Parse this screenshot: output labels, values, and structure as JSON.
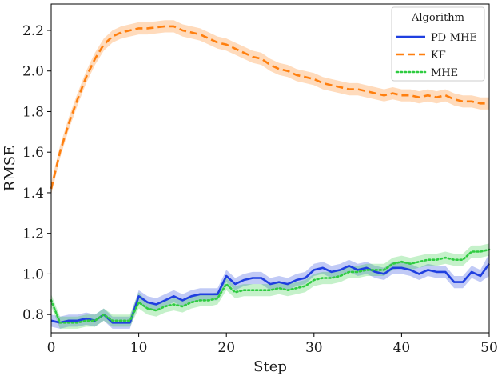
{
  "chart_data": {
    "type": "line",
    "title": "",
    "xlabel": "Step",
    "ylabel": "RMSE",
    "xlim": [
      0,
      50
    ],
    "ylim": [
      0.71,
      2.33
    ],
    "xticks": [
      0,
      10,
      20,
      30,
      40,
      50
    ],
    "xtick_labels": [
      "0",
      "10",
      "20",
      "30",
      "40",
      "50"
    ],
    "yticks": [
      0.8,
      1.0,
      1.2,
      1.4,
      1.6,
      1.8,
      2.0,
      2.2
    ],
    "ytick_labels": [
      "0.8",
      "1.0",
      "1.2",
      "1.4",
      "1.6",
      "1.8",
      "2.0",
      "2.2"
    ],
    "grid": false,
    "legend": {
      "title": "Algorithm",
      "position": "top-right"
    },
    "x": [
      0,
      1,
      2,
      3,
      4,
      5,
      6,
      7,
      8,
      9,
      10,
      11,
      12,
      13,
      14,
      15,
      16,
      17,
      18,
      19,
      20,
      21,
      22,
      23,
      24,
      25,
      26,
      27,
      28,
      29,
      30,
      31,
      32,
      33,
      34,
      35,
      36,
      37,
      38,
      39,
      40,
      41,
      42,
      43,
      44,
      45,
      46,
      47,
      48,
      49,
      50
    ],
    "series": [
      {
        "name": "PD-MHE",
        "color": "#1f3fe0",
        "style": "solid",
        "values": [
          0.77,
          0.76,
          0.77,
          0.77,
          0.78,
          0.77,
          0.8,
          0.76,
          0.76,
          0.76,
          0.89,
          0.86,
          0.85,
          0.87,
          0.89,
          0.87,
          0.89,
          0.9,
          0.9,
          0.9,
          0.99,
          0.95,
          0.97,
          0.98,
          0.98,
          0.95,
          0.96,
          0.95,
          0.97,
          0.98,
          1.02,
          1.03,
          1.01,
          1.02,
          1.04,
          1.02,
          1.03,
          1.01,
          1.0,
          1.03,
          1.03,
          1.02,
          1.0,
          1.02,
          1.01,
          1.01,
          0.96,
          0.96,
          1.01,
          0.99,
          1.05
        ],
        "lower": [
          0.74,
          0.73,
          0.74,
          0.74,
          0.75,
          0.74,
          0.77,
          0.73,
          0.73,
          0.73,
          0.86,
          0.83,
          0.82,
          0.84,
          0.86,
          0.84,
          0.86,
          0.87,
          0.87,
          0.87,
          0.96,
          0.92,
          0.94,
          0.95,
          0.95,
          0.92,
          0.93,
          0.92,
          0.94,
          0.95,
          0.99,
          1.0,
          0.98,
          0.99,
          1.01,
          0.99,
          1.0,
          0.98,
          0.97,
          1.0,
          1.0,
          0.99,
          0.97,
          0.99,
          0.98,
          0.98,
          0.93,
          0.93,
          0.98,
          0.96,
          0.99
        ],
        "upper": [
          0.8,
          0.79,
          0.8,
          0.8,
          0.81,
          0.8,
          0.83,
          0.79,
          0.79,
          0.79,
          0.92,
          0.89,
          0.88,
          0.9,
          0.92,
          0.9,
          0.92,
          0.93,
          0.93,
          0.93,
          1.02,
          0.98,
          1.0,
          1.01,
          1.01,
          0.98,
          0.99,
          0.98,
          1.0,
          1.01,
          1.05,
          1.06,
          1.04,
          1.05,
          1.07,
          1.05,
          1.06,
          1.04,
          1.03,
          1.06,
          1.06,
          1.05,
          1.03,
          1.05,
          1.04,
          1.04,
          0.99,
          0.99,
          1.04,
          1.02,
          1.1
        ]
      },
      {
        "name": "KF",
        "color": "#ff7f0e",
        "style": "dashed",
        "values": [
          1.42,
          1.6,
          1.74,
          1.86,
          1.97,
          2.06,
          2.13,
          2.17,
          2.19,
          2.2,
          2.21,
          2.21,
          2.215,
          2.22,
          2.22,
          2.2,
          2.19,
          2.18,
          2.16,
          2.14,
          2.13,
          2.11,
          2.09,
          2.07,
          2.06,
          2.03,
          2.01,
          2.0,
          1.98,
          1.97,
          1.96,
          1.94,
          1.93,
          1.92,
          1.91,
          1.91,
          1.9,
          1.89,
          1.88,
          1.89,
          1.88,
          1.88,
          1.87,
          1.88,
          1.87,
          1.88,
          1.86,
          1.85,
          1.85,
          1.84,
          1.84
        ],
        "lower": [
          1.39,
          1.57,
          1.71,
          1.83,
          1.94,
          2.03,
          2.1,
          2.14,
          2.16,
          2.17,
          2.18,
          2.18,
          2.185,
          2.19,
          2.19,
          2.17,
          2.16,
          2.15,
          2.13,
          2.11,
          2.1,
          2.08,
          2.06,
          2.04,
          2.03,
          2.0,
          1.98,
          1.97,
          1.95,
          1.94,
          1.93,
          1.91,
          1.9,
          1.89,
          1.88,
          1.88,
          1.87,
          1.86,
          1.85,
          1.86,
          1.85,
          1.85,
          1.84,
          1.85,
          1.84,
          1.85,
          1.83,
          1.82,
          1.82,
          1.81,
          1.81
        ],
        "upper": [
          1.45,
          1.63,
          1.77,
          1.89,
          2.0,
          2.09,
          2.16,
          2.2,
          2.22,
          2.23,
          2.24,
          2.24,
          2.245,
          2.25,
          2.25,
          2.23,
          2.22,
          2.21,
          2.19,
          2.17,
          2.16,
          2.14,
          2.12,
          2.1,
          2.09,
          2.06,
          2.04,
          2.03,
          2.01,
          2.0,
          1.99,
          1.97,
          1.96,
          1.95,
          1.94,
          1.94,
          1.93,
          1.92,
          1.91,
          1.92,
          1.91,
          1.91,
          1.9,
          1.91,
          1.9,
          1.91,
          1.89,
          1.88,
          1.88,
          1.87,
          1.87
        ]
      },
      {
        "name": "MHE",
        "color": "#2ecc40",
        "style": "dotted",
        "values": [
          0.87,
          0.76,
          0.76,
          0.76,
          0.77,
          0.77,
          0.8,
          0.77,
          0.77,
          0.77,
          0.86,
          0.83,
          0.82,
          0.84,
          0.85,
          0.84,
          0.86,
          0.87,
          0.87,
          0.88,
          0.95,
          0.91,
          0.92,
          0.92,
          0.92,
          0.92,
          0.93,
          0.92,
          0.93,
          0.94,
          0.97,
          0.98,
          0.98,
          0.99,
          1.01,
          1.01,
          1.02,
          1.02,
          1.02,
          1.05,
          1.06,
          1.05,
          1.06,
          1.07,
          1.07,
          1.08,
          1.07,
          1.07,
          1.11,
          1.11,
          1.12
        ],
        "lower": [
          0.84,
          0.73,
          0.73,
          0.73,
          0.74,
          0.74,
          0.77,
          0.74,
          0.74,
          0.74,
          0.83,
          0.8,
          0.79,
          0.81,
          0.82,
          0.81,
          0.83,
          0.84,
          0.84,
          0.85,
          0.92,
          0.88,
          0.89,
          0.89,
          0.89,
          0.89,
          0.9,
          0.89,
          0.9,
          0.91,
          0.94,
          0.95,
          0.95,
          0.96,
          0.98,
          0.98,
          0.99,
          0.99,
          0.99,
          1.02,
          1.03,
          1.02,
          1.03,
          1.04,
          1.04,
          1.05,
          1.04,
          1.04,
          1.08,
          1.08,
          1.09
        ],
        "upper": [
          0.9,
          0.79,
          0.79,
          0.79,
          0.8,
          0.8,
          0.83,
          0.8,
          0.8,
          0.8,
          0.91,
          0.86,
          0.85,
          0.87,
          0.88,
          0.87,
          0.89,
          0.9,
          0.9,
          0.91,
          0.98,
          0.94,
          0.95,
          0.95,
          0.95,
          0.95,
          0.96,
          0.95,
          0.96,
          0.97,
          1.0,
          1.01,
          1.01,
          1.02,
          1.04,
          1.04,
          1.05,
          1.05,
          1.05,
          1.08,
          1.09,
          1.08,
          1.09,
          1.1,
          1.1,
          1.11,
          1.1,
          1.1,
          1.14,
          1.14,
          1.15
        ]
      }
    ]
  }
}
